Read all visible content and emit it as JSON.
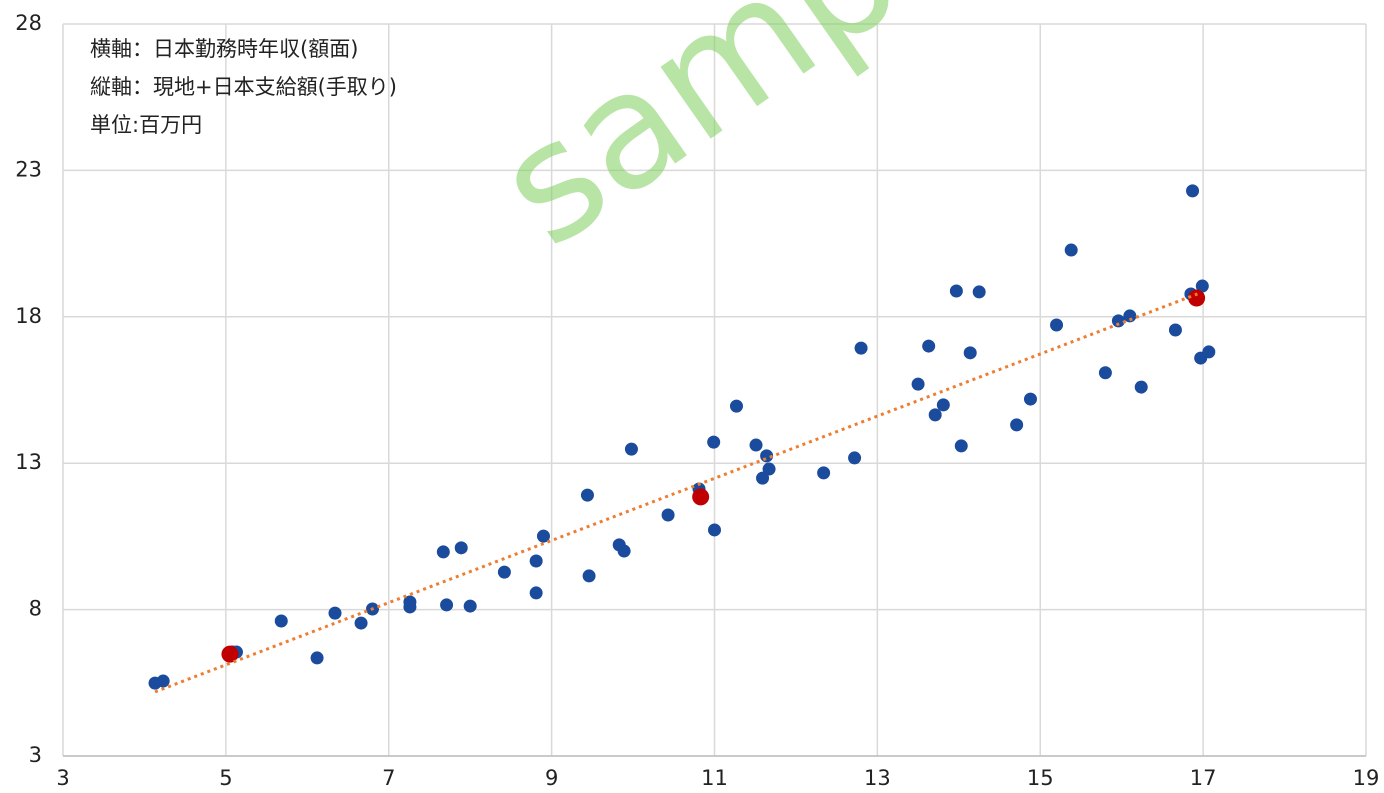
{
  "chart_data": {
    "type": "scatter",
    "annotations": [
      "横軸：日本勤務時年収(額面)",
      "縦軸：現地+日本支給額(手取り)",
      "単位:百万円"
    ],
    "watermark": "sample",
    "xlim": [
      3,
      19
    ],
    "xticks": [
      3,
      5,
      7,
      9,
      11,
      13,
      15,
      17,
      19
    ],
    "ylim": [
      3,
      28
    ],
    "yticks": [
      3,
      8,
      13,
      18,
      23,
      28
    ],
    "grid": true,
    "series": [
      {
        "color": "#1a4b9c",
        "x": [
          4.13,
          4.23,
          5.08,
          5.13,
          5.68,
          6.12,
          6.34,
          6.66,
          6.8,
          7.26,
          7.26,
          7.67,
          7.71,
          7.89,
          8.0,
          8.42,
          8.81,
          8.81,
          8.9,
          9.44,
          9.46,
          9.83,
          9.89,
          9.98,
          10.43,
          10.81,
          10.99,
          11.0,
          11.27,
          11.51,
          11.64,
          11.59,
          11.67,
          12.34,
          12.72,
          12.8,
          13.5,
          13.63,
          13.71,
          13.81,
          13.97,
          14.03,
          14.14,
          14.25,
          14.71,
          14.88,
          15.2,
          15.38,
          15.8,
          15.96,
          16.1,
          16.24,
          16.66,
          16.87,
          16.85,
          16.99,
          16.97,
          17.07
        ],
        "values": [
          5.49,
          5.56,
          6.55,
          6.55,
          7.61,
          6.35,
          7.88,
          7.54,
          8.02,
          8.26,
          8.09,
          9.97,
          8.16,
          10.11,
          8.12,
          9.28,
          9.66,
          8.57,
          10.51,
          11.91,
          9.15,
          10.21,
          10.0,
          13.48,
          11.23,
          12.12,
          13.72,
          10.72,
          14.95,
          13.62,
          13.25,
          12.49,
          12.8,
          12.67,
          13.18,
          16.93,
          15.7,
          17.0,
          14.65,
          14.99,
          18.88,
          13.59,
          16.77,
          18.85,
          14.31,
          15.19,
          17.72,
          20.28,
          16.09,
          17.86,
          18.03,
          15.6,
          17.55,
          22.3,
          18.78,
          19.05,
          16.59,
          16.8
        ]
      },
      {
        "color": "#c00000",
        "x": [
          5.05,
          10.83,
          16.92
        ],
        "values": [
          6.48,
          11.85,
          18.64
        ]
      }
    ],
    "trendline": {
      "color": "#ed7d31",
      "x": [
        4.13,
        16.93
      ],
      "values": [
        5.19,
        18.78
      ]
    }
  }
}
